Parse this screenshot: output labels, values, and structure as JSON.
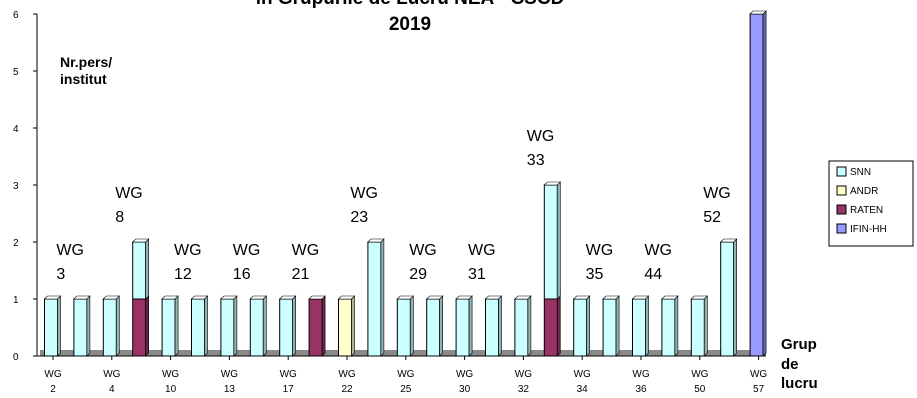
{
  "chart_data": {
    "type": "bar",
    "stacked": true,
    "title_lines": [
      "in Grupurile de Lucru NEA - CSCD",
      "2019"
    ],
    "ylabel_lines": [
      "Nr.pers/",
      "institut"
    ],
    "xlabel_lines": [
      "Grup",
      "de",
      "lucru"
    ],
    "ylim": [
      0,
      6
    ],
    "yticks": [
      "0",
      "1",
      "2",
      "3",
      "4",
      "5",
      "6"
    ],
    "categories": [
      "WG 2",
      "WG 3",
      "WG 4",
      "WG 8",
      "WG 10",
      "WG 12",
      "WG 13",
      "WG 16",
      "WG 17",
      "WG 21",
      "WG 22",
      "WG 23",
      "WG 25",
      "WG 29",
      "WG 30",
      "WG 31",
      "WG 32",
      "WG 33",
      "WG 34",
      "WG 35",
      "WG 36",
      "WG 44",
      "WG 50",
      "WG 52",
      "WG 57"
    ],
    "tick_labels": [
      [
        "WG",
        "2"
      ],
      [
        "WG",
        "4"
      ],
      [
        "WG",
        "10"
      ],
      [
        "WG",
        "13"
      ],
      [
        "WG",
        "17"
      ],
      [
        "WG",
        "22"
      ],
      [
        "WG",
        "25"
      ],
      [
        "WG",
        "30"
      ],
      [
        "WG",
        "32"
      ],
      [
        "WG",
        "34"
      ],
      [
        "WG",
        "36"
      ],
      [
        "WG",
        "50"
      ],
      [
        "WG",
        "57"
      ]
    ],
    "tick_positions": [
      0,
      2,
      4,
      6,
      8,
      10,
      12,
      14,
      16,
      18,
      20,
      22,
      24
    ],
    "annotations": [
      {
        "index": 1,
        "lines": [
          "WG",
          "3"
        ]
      },
      {
        "index": 3,
        "lines": [
          "WG",
          "8"
        ]
      },
      {
        "index": 5,
        "lines": [
          "WG",
          "12"
        ]
      },
      {
        "index": 7,
        "lines": [
          "WG",
          "16"
        ]
      },
      {
        "index": 9,
        "lines": [
          "WG",
          "21"
        ]
      },
      {
        "index": 11,
        "lines": [
          "WG",
          "23"
        ]
      },
      {
        "index": 13,
        "lines": [
          "WG",
          "29"
        ]
      },
      {
        "index": 15,
        "lines": [
          "WG",
          "31"
        ]
      },
      {
        "index": 17,
        "lines": [
          "WG",
          "33"
        ]
      },
      {
        "index": 19,
        "lines": [
          "WG",
          "35"
        ]
      },
      {
        "index": 21,
        "lines": [
          "WG",
          "44"
        ]
      },
      {
        "index": 23,
        "lines": [
          "WG",
          "52"
        ]
      }
    ],
    "series": [
      {
        "name": "SNN",
        "color": "#ccffff",
        "values": [
          1,
          1,
          1,
          1,
          1,
          1,
          1,
          1,
          1,
          0,
          0,
          2,
          1,
          1,
          1,
          1,
          1,
          2,
          1,
          1,
          1,
          1,
          1,
          2,
          0
        ]
      },
      {
        "name": "ANDR",
        "color": "#ffffcc",
        "values": [
          0,
          0,
          0,
          0,
          0,
          0,
          0,
          0,
          0,
          0,
          1,
          0,
          0,
          0,
          0,
          0,
          0,
          0,
          0,
          0,
          0,
          0,
          0,
          0,
          0
        ]
      },
      {
        "name": "RATEN",
        "color": "#993366",
        "values": [
          0,
          0,
          0,
          1,
          0,
          0,
          0,
          0,
          0,
          1,
          0,
          0,
          0,
          0,
          0,
          0,
          0,
          1,
          0,
          0,
          0,
          0,
          0,
          0,
          0
        ]
      },
      {
        "name": "IFIN-HH",
        "color": "#9999ff",
        "values": [
          0,
          0,
          0,
          0,
          0,
          0,
          0,
          0,
          0,
          0,
          0,
          0,
          0,
          0,
          0,
          0,
          0,
          0,
          0,
          0,
          0,
          0,
          0,
          0,
          6
        ]
      }
    ],
    "stack_order": [
      "RATEN",
      "ANDR",
      "SNN",
      "IFIN-HH"
    ],
    "legend_position": "right",
    "grid": false
  }
}
